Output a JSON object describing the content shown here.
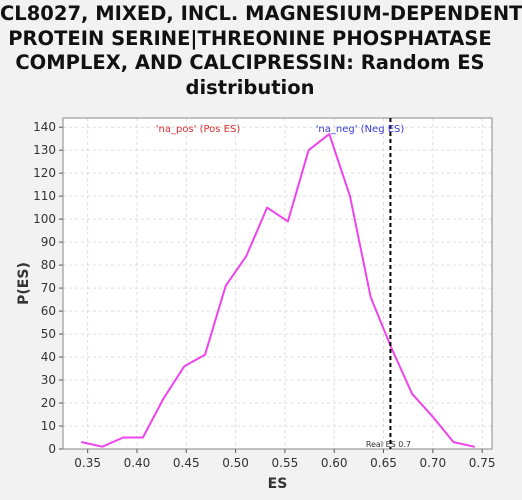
{
  "title_lines": [
    "CL8027, MIXED, INCL. MAGNESIUM-DEPENDENT",
    "PROTEIN SERINE|THREONINE PHOSPHATASE",
    "COMPLEX, AND CALCIPRESSIN: Random ES",
    "distribution"
  ],
  "colors": {
    "series": "#ee44ee",
    "legend_pos": "#e03030",
    "legend_neg": "#3a3ad8",
    "marker": "#000000",
    "grid": "#dddddd",
    "plot_bg": "#ffffff",
    "page_bg": "#f2f2f2"
  },
  "chart_data": {
    "type": "line",
    "xlabel": "ES",
    "ylabel": "P(ES)",
    "xlim": [
      0.325,
      0.76
    ],
    "ylim": [
      0,
      144
    ],
    "xticks": [
      0.35,
      0.4,
      0.45,
      0.5,
      0.55,
      0.6,
      0.65,
      0.7,
      0.75
    ],
    "xtick_labels": [
      "0.35",
      "0.40",
      "0.45",
      "0.50",
      "0.55",
      "0.60",
      "0.65",
      "0.70",
      "0.75"
    ],
    "yticks": [
      0,
      10,
      20,
      30,
      40,
      50,
      60,
      70,
      80,
      90,
      100,
      110,
      120,
      130,
      140
    ],
    "grid": true,
    "legend": [
      {
        "label": "'na_pos' (Pos ES)",
        "color": "#e03030"
      },
      {
        "label": "'na_neg' (Neg ES)",
        "color": "#3a3ad8"
      }
    ],
    "series": [
      {
        "x": [
          0.344,
          0.365,
          0.386,
          0.406,
          0.427,
          0.448,
          0.469,
          0.49,
          0.511,
          0.532,
          0.553,
          0.574,
          0.595,
          0.616,
          0.637,
          0.658,
          0.679,
          0.7,
          0.721,
          0.742
        ],
        "y": [
          3,
          1,
          5,
          5,
          22,
          36,
          41,
          71,
          84,
          105,
          99,
          130,
          137,
          110,
          66,
          44,
          24,
          14,
          3,
          1
        ]
      }
    ],
    "marker": {
      "x": 0.657,
      "label": "Real ES 0.7"
    }
  }
}
